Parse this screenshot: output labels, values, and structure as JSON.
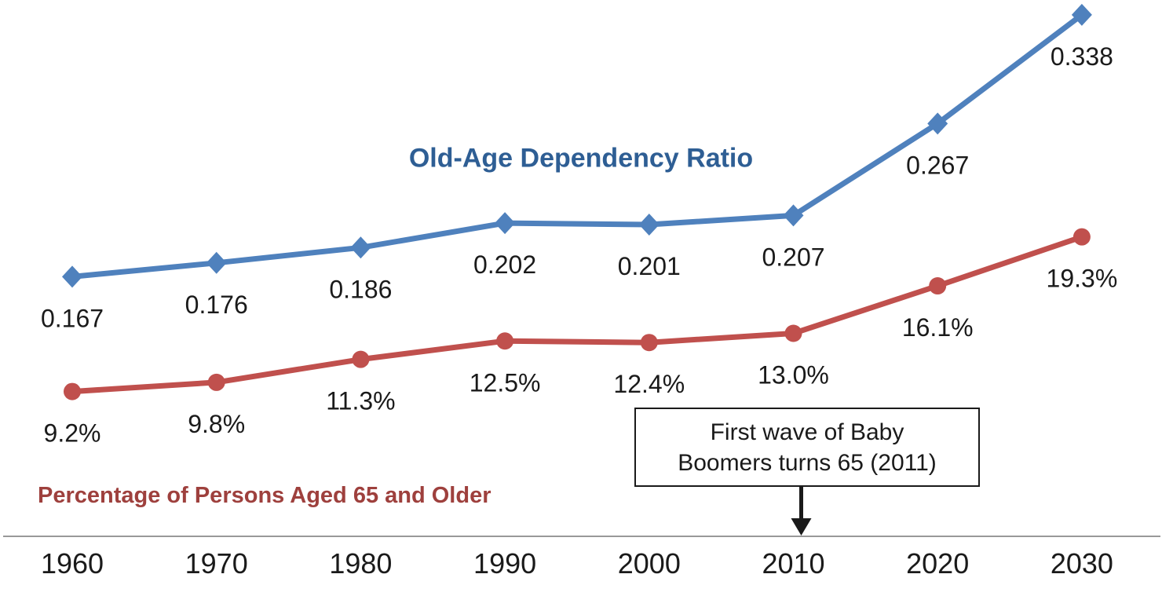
{
  "chart_data": {
    "type": "line",
    "title": "",
    "categories": [
      "1960",
      "1970",
      "1980",
      "1990",
      "2000",
      "2010",
      "2020",
      "2030"
    ],
    "series": [
      {
        "name": "Old-Age Dependency Ratio",
        "color": "#4F81BD",
        "title_color": "#2E5E94",
        "marker": "diamond",
        "unit": "ratio",
        "values": [
          0.167,
          0.176,
          0.186,
          0.202,
          0.201,
          0.207,
          0.267,
          0.338
        ],
        "labels": [
          "0.167",
          "0.176",
          "0.186",
          "0.202",
          "0.201",
          "0.207",
          "0.267",
          "0.338"
        ]
      },
      {
        "name": "Percentage of Persons Aged 65 and Older",
        "color": "#C0504D",
        "title_color": "#9E403D",
        "marker": "circle",
        "unit": "percent",
        "values": [
          9.2,
          9.8,
          11.3,
          12.5,
          12.4,
          13.0,
          16.1,
          19.3
        ],
        "labels": [
          "9.2%",
          "9.8%",
          "11.3%",
          "12.5%",
          "12.4%",
          "13.0%",
          "16.1%",
          "19.3%"
        ]
      }
    ],
    "annotation": {
      "line1": "First wave of Baby",
      "line2": "Boomers turns 65 (2011)",
      "target_category": "2010",
      "arrow_color": "#1a1a1a"
    },
    "xlabel": "",
    "ylabel": "",
    "ylim": [
      0,
      0.36
    ],
    "grid": false,
    "legend_position": "inline-labels",
    "axis": {
      "line_color": "#999999",
      "tick_color": "#1a1a1a"
    },
    "label_color": "#1a1a1a",
    "background": "#ffffff"
  }
}
